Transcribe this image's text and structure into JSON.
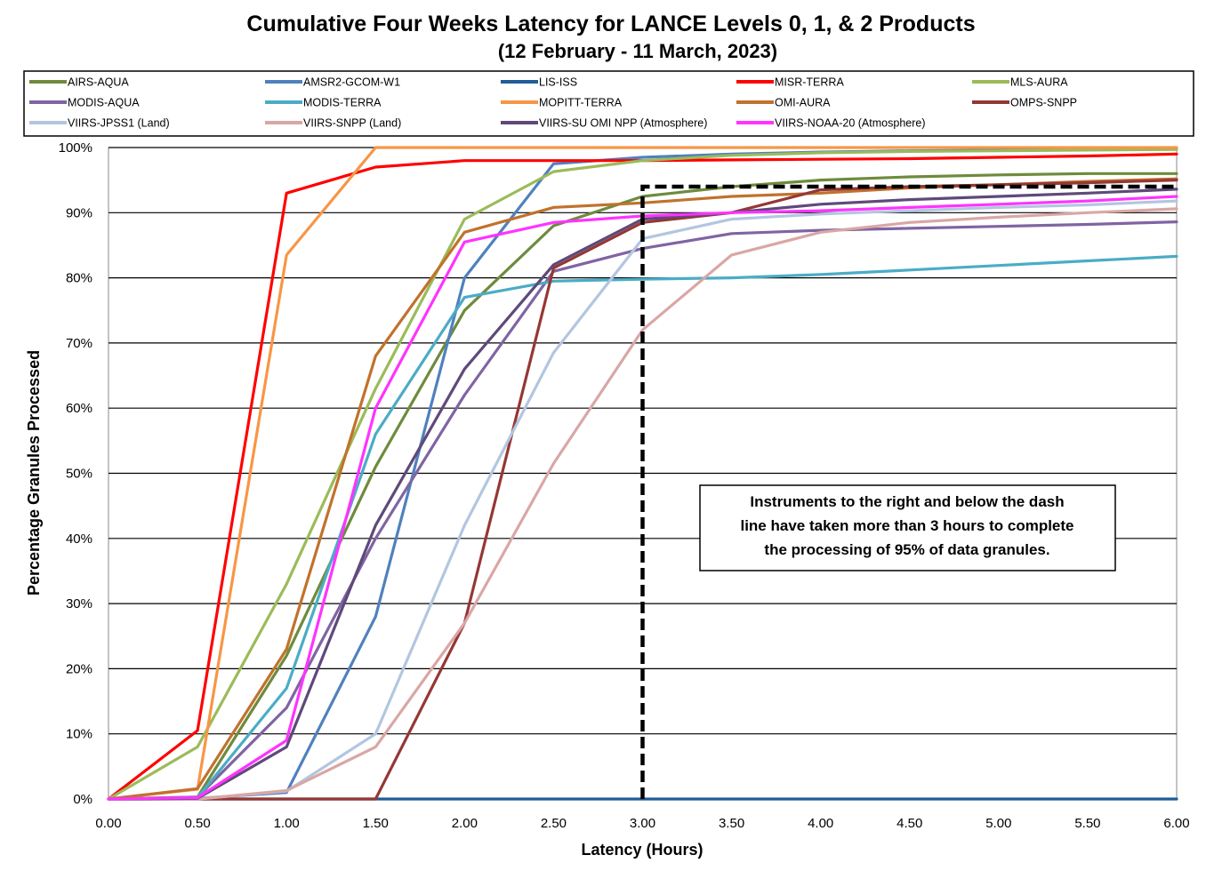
{
  "chart_data": {
    "type": "line",
    "title": "Cumulative Four Weeks Latency  for LANCE Levels 0, 1, & 2 Products",
    "subtitle": "(12  February   -  11  March,  2023)",
    "xlabel": "Latency (Hours)",
    "ylabel": "Percentage Granules Processed",
    "x": [
      0,
      0.5,
      1.0,
      1.5,
      2.0,
      2.5,
      3.0,
      3.5,
      4.0,
      4.5,
      5.0,
      5.5,
      6.0
    ],
    "x_tick_labels": [
      "0.00",
      "0.50",
      "1.00",
      "1.50",
      "2.00",
      "2.50",
      "3.00",
      "3.50",
      "4.00",
      "4.50",
      "5.00",
      "5.50",
      "6.00"
    ],
    "y_tick_labels": [
      "0%",
      "10%",
      "20%",
      "30%",
      "40%",
      "50%",
      "60%",
      "70%",
      "80%",
      "90%",
      "100%"
    ],
    "xlim": [
      0,
      6
    ],
    "ylim": [
      0,
      100
    ],
    "grid": "horizontal",
    "legend_position": "top",
    "series": [
      {
        "name": "AIRS-AQUA",
        "color": "#6E8B3D",
        "values": [
          0,
          0.3,
          22,
          51,
          75,
          88,
          92.5,
          94,
          95,
          95.5,
          95.8,
          96,
          96
        ]
      },
      {
        "name": "AMSR2-GCOM-W1",
        "color": "#4F81BD",
        "values": [
          0,
          0.1,
          1,
          28,
          80,
          97.5,
          98.5,
          99,
          99.3,
          99.5,
          99.6,
          99.7,
          99.8
        ]
      },
      {
        "name": "LIS-ISS",
        "color": "#1F5C99",
        "values": [
          0,
          0,
          0,
          0,
          0,
          0,
          0,
          0,
          0,
          0,
          0,
          0,
          0
        ]
      },
      {
        "name": "MISR-TERRA",
        "color": "#FF0000",
        "values": [
          0,
          10.5,
          93,
          97,
          98,
          98,
          98,
          98.1,
          98.2,
          98.3,
          98.5,
          98.7,
          99
        ]
      },
      {
        "name": "MLS-AURA",
        "color": "#9BBB59",
        "values": [
          0,
          8,
          33,
          63,
          89,
          96.3,
          98,
          98.8,
          99.2,
          99.4,
          99.5,
          99.6,
          99.7
        ]
      },
      {
        "name": "MODIS-AQUA",
        "color": "#8064A2",
        "values": [
          0,
          0.3,
          14,
          40,
          62,
          81,
          84.5,
          86.8,
          87.3,
          87.6,
          87.9,
          88.2,
          88.6
        ]
      },
      {
        "name": "MODIS-TERRA",
        "color": "#4BACC6",
        "values": [
          0,
          0.2,
          17,
          56,
          77,
          79.5,
          79.8,
          80,
          80.5,
          81.2,
          81.9,
          82.6,
          83.3
        ]
      },
      {
        "name": "MOPITT-TERRA",
        "color": "#F79646",
        "values": [
          0,
          1.5,
          83.5,
          100,
          100,
          100,
          100,
          100,
          100,
          100,
          100,
          100,
          100
        ]
      },
      {
        "name": "OMI-AURA",
        "color": "#C0722D",
        "values": [
          0,
          1.6,
          23,
          68,
          87,
          90.8,
          91.5,
          92.5,
          93,
          93.8,
          94.3,
          94.8,
          95.2
        ]
      },
      {
        "name": "OMPS-SNPP",
        "color": "#953735",
        "values": [
          0,
          0,
          0,
          0,
          27,
          81.5,
          88.5,
          90,
          93.5,
          94,
          94.3,
          94.6,
          95
        ]
      },
      {
        "name": "VIIRS-JPSS1 (Land)",
        "color": "#B3C6E0",
        "values": [
          0,
          0,
          1.2,
          10,
          42,
          68.5,
          86,
          89,
          89.8,
          90.3,
          90.8,
          91.2,
          91.8
        ]
      },
      {
        "name": "VIIRS-SNPP (Land)",
        "color": "#D9A7A5",
        "values": [
          0,
          0,
          1.3,
          8,
          27,
          51.5,
          72,
          83.5,
          87,
          88.5,
          89.3,
          90,
          90.6
        ]
      },
      {
        "name": "VIIRS-SU OMI NPP (Atmosphere)",
        "color": "#5F497A",
        "values": [
          0,
          0.1,
          8,
          42,
          66,
          82,
          89,
          90,
          91.3,
          92,
          92.5,
          93,
          93.6
        ]
      },
      {
        "name": "VIIRS-NOAA-20 (Atmosphere)",
        "color": "#FF33FF",
        "values": [
          0,
          0.2,
          9,
          60,
          85.5,
          88.5,
          89.5,
          90,
          90.3,
          90.8,
          91.3,
          91.8,
          92.5
        ]
      }
    ],
    "threshold_line": {
      "points": [
        [
          3.0,
          0
        ],
        [
          3.0,
          94
        ],
        [
          6.0,
          94
        ]
      ]
    },
    "annotation": [
      "Instruments to the right and below the dash",
      "line have taken more than 3 hours to complete",
      "the processing of 95% of data granules."
    ]
  }
}
